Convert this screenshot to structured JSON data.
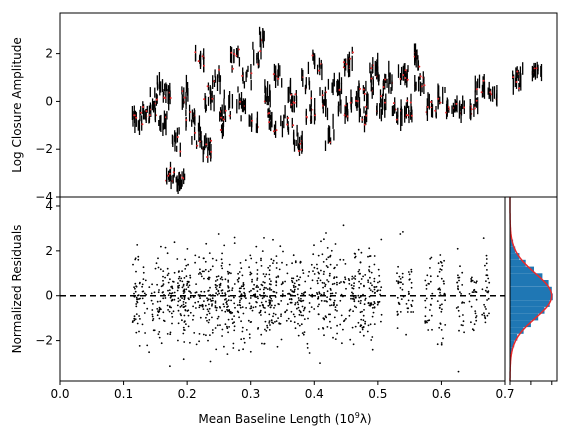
{
  "chart_data": [
    {
      "type": "scatter",
      "panel": "top",
      "ylabel": "Log Closure Amplitude",
      "xlim": [
        0.0,
        0.78
      ],
      "ylim": [
        -4,
        3.7
      ],
      "yticks": [
        -4,
        -2,
        0,
        2
      ],
      "ytick_labels": [
        "−4",
        "−2",
        "0",
        "2"
      ],
      "marker": "black vertical error bars with red model points",
      "groups": [
        {
          "x": 0.12,
          "y": -0.7,
          "spread": 0.5
        },
        {
          "x": 0.135,
          "y": -0.5,
          "spread": 0.5
        },
        {
          "x": 0.145,
          "y": -0.1,
          "spread": 0.6
        },
        {
          "x": 0.155,
          "y": 0.6,
          "spread": 0.4
        },
        {
          "x": 0.162,
          "y": -0.9,
          "spread": 0.5
        },
        {
          "x": 0.168,
          "y": 0.2,
          "spread": 0.5
        },
        {
          "x": 0.175,
          "y": -3.2,
          "spread": 0.3
        },
        {
          "x": 0.182,
          "y": -1.6,
          "spread": 0.5
        },
        {
          "x": 0.19,
          "y": -3.3,
          "spread": 0.3
        },
        {
          "x": 0.195,
          "y": 0.2,
          "spread": 0.5
        },
        {
          "x": 0.205,
          "y": -0.6,
          "spread": 0.5
        },
        {
          "x": 0.215,
          "y": -1.2,
          "spread": 0.5
        },
        {
          "x": 0.22,
          "y": 1.8,
          "spread": 0.3
        },
        {
          "x": 0.23,
          "y": -2.0,
          "spread": 0.5
        },
        {
          "x": 0.235,
          "y": 0.0,
          "spread": 0.6
        },
        {
          "x": 0.245,
          "y": 1.0,
          "spread": 0.4
        },
        {
          "x": 0.255,
          "y": -1.0,
          "spread": 0.6
        },
        {
          "x": 0.265,
          "y": 0.1,
          "spread": 0.6
        },
        {
          "x": 0.275,
          "y": 1.8,
          "spread": 0.4
        },
        {
          "x": 0.285,
          "y": -0.2,
          "spread": 0.6
        },
        {
          "x": 0.295,
          "y": 0.9,
          "spread": 0.5
        },
        {
          "x": 0.305,
          "y": -1.0,
          "spread": 0.6
        },
        {
          "x": 0.31,
          "y": 1.9,
          "spread": 0.5
        },
        {
          "x": 0.318,
          "y": 2.6,
          "spread": 0.5
        },
        {
          "x": 0.325,
          "y": 0.3,
          "spread": 0.6
        },
        {
          "x": 0.335,
          "y": -0.8,
          "spread": 0.5
        },
        {
          "x": 0.345,
          "y": 1.0,
          "spread": 0.5
        },
        {
          "x": 0.355,
          "y": -1.0,
          "spread": 0.6
        },
        {
          "x": 0.365,
          "y": 0.0,
          "spread": 0.6
        },
        {
          "x": 0.375,
          "y": -1.7,
          "spread": 0.4
        },
        {
          "x": 0.385,
          "y": 0.8,
          "spread": 0.5
        },
        {
          "x": 0.395,
          "y": -0.5,
          "spread": 0.5
        },
        {
          "x": 0.405,
          "y": 1.6,
          "spread": 0.4
        },
        {
          "x": 0.415,
          "y": 0.0,
          "spread": 0.6
        },
        {
          "x": 0.425,
          "y": -1.5,
          "spread": 0.5
        },
        {
          "x": 0.435,
          "y": 0.6,
          "spread": 0.5
        },
        {
          "x": 0.445,
          "y": -0.4,
          "spread": 0.5
        },
        {
          "x": 0.455,
          "y": 1.5,
          "spread": 0.5
        },
        {
          "x": 0.465,
          "y": 0.0,
          "spread": 0.5
        },
        {
          "x": 0.475,
          "y": -0.6,
          "spread": 0.5
        },
        {
          "x": 0.485,
          "y": 0.5,
          "spread": 0.5
        },
        {
          "x": 0.495,
          "y": 1.3,
          "spread": 0.5
        },
        {
          "x": 0.505,
          "y": -0.2,
          "spread": 0.5
        },
        {
          "x": 0.515,
          "y": 0.8,
          "spread": 0.4
        },
        {
          "x": 0.53,
          "y": -0.5,
          "spread": 0.4
        },
        {
          "x": 0.54,
          "y": 1.0,
          "spread": 0.4
        },
        {
          "x": 0.55,
          "y": -0.4,
          "spread": 0.3
        },
        {
          "x": 0.558,
          "y": 1.9,
          "spread": 0.3
        },
        {
          "x": 0.565,
          "y": 0.8,
          "spread": 0.4
        },
        {
          "x": 0.585,
          "y": -0.3,
          "spread": 0.3
        },
        {
          "x": 0.6,
          "y": 0.2,
          "spread": 0.4
        },
        {
          "x": 0.615,
          "y": -0.3,
          "spread": 0.3
        },
        {
          "x": 0.63,
          "y": -0.3,
          "spread": 0.3
        },
        {
          "x": 0.65,
          "y": -0.2,
          "spread": 0.4
        },
        {
          "x": 0.66,
          "y": 0.6,
          "spread": 0.3
        },
        {
          "x": 0.68,
          "y": 0.3,
          "spread": 0.3
        },
        {
          "x": 0.72,
          "y": 0.9,
          "spread": 0.4
        },
        {
          "x": 0.75,
          "y": 1.3,
          "spread": 0.2
        }
      ]
    },
    {
      "type": "scatter",
      "panel": "bottom",
      "xlabel": "Mean Baseline Length (10",
      "xlabel_sup": "9",
      "xlabel_end": "λ)",
      "ylabel": "Normalized Residuals",
      "xlim": [
        0.0,
        0.7
      ],
      "ylim": [
        -3.8,
        4.4
      ],
      "xticks": [
        0.0,
        0.1,
        0.2,
        0.3,
        0.4,
        0.5,
        0.6,
        0.7
      ],
      "xtick_labels": [
        "0.0",
        "0.1",
        "0.2",
        "0.3",
        "0.4",
        "0.5",
        "0.6",
        "0.7"
      ],
      "yticks": [
        -2,
        0,
        2,
        4
      ],
      "ytick_labels": [
        "−2",
        "0",
        "2",
        "4"
      ],
      "reference_line_y": 0,
      "marker": "black dots",
      "column_centers": [
        0.12,
        0.135,
        0.15,
        0.16,
        0.175,
        0.19,
        0.2,
        0.215,
        0.225,
        0.235,
        0.25,
        0.26,
        0.27,
        0.285,
        0.295,
        0.305,
        0.315,
        0.325,
        0.335,
        0.345,
        0.36,
        0.37,
        0.38,
        0.395,
        0.41,
        0.42,
        0.43,
        0.445,
        0.46,
        0.475,
        0.49,
        0.5,
        0.535,
        0.55,
        0.58,
        0.6,
        0.63,
        0.65,
        0.67
      ],
      "residual_sd": 1.0
    },
    {
      "type": "histogram",
      "panel": "bottom-right",
      "orientation": "horizontal",
      "bin_edges": [
        -2.6,
        -2.3,
        -2.0,
        -1.7,
        -1.4,
        -1.1,
        -0.8,
        -0.5,
        -0.2,
        0.1,
        0.4,
        0.7,
        1.0,
        1.3,
        1.6,
        1.9,
        2.2,
        2.5,
        2.8
      ],
      "densities": [
        0.02,
        0.04,
        0.07,
        0.13,
        0.2,
        0.27,
        0.33,
        0.38,
        0.41,
        0.4,
        0.37,
        0.31,
        0.23,
        0.15,
        0.09,
        0.05,
        0.03,
        0.01
      ],
      "bar_color": "#1f77b4",
      "curve": "normal distribution, mean 0, sd 1",
      "curve_color": "#e8292b",
      "xlim": [
        0,
        0.45
      ],
      "xticks": [
        0.0,
        0.2,
        0.4
      ]
    }
  ]
}
